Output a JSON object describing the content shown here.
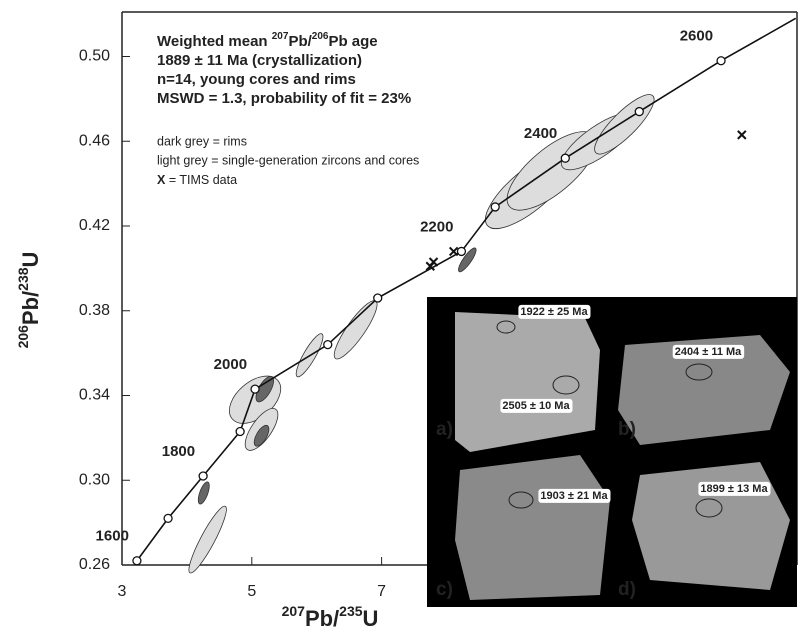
{
  "chart_data": {
    "type": "concordia",
    "annotation_lines": [
      [
        "Weighted mean ",
        "207",
        "Pb/",
        "206",
        "Pb age"
      ],
      [
        "1889 ± 11  Ma (crystallization)"
      ],
      [
        "n=14, young cores and rims"
      ],
      [
        "MSWD = 1.3, probability of fit = 23%"
      ]
    ],
    "legend_lines": [
      "dark grey = rims",
      "light grey = single-generation zircons and cores"
    ],
    "legend_tims": [
      "X",
      " = TIMS data"
    ],
    "x_label": [
      "207",
      "Pb/",
      "235",
      "U"
    ],
    "y_label": [
      "206",
      "Pb/",
      "238",
      "U"
    ],
    "xlim": [
      3,
      13.4
    ],
    "ylim": [
      0.26,
      0.521
    ],
    "xticks": [
      3,
      5,
      7
    ],
    "yticks": [
      0.26,
      0.3,
      0.34,
      0.38,
      0.42,
      0.46,
      {
        "value": 0.5,
        "label": "0.50"
      },
      {
        "value": 0.3,
        "label": "0.30"
      }
    ],
    "concordia": {
      "x": [
        3.23,
        3.71,
        4.25,
        4.82,
        5.05,
        6.17,
        6.94,
        8.23,
        8.75,
        9.83,
        10.97,
        12.23,
        13.38
      ],
      "y": [
        0.262,
        0.282,
        0.302,
        0.323,
        0.343,
        0.364,
        0.386,
        0.408,
        0.429,
        0.452,
        0.474,
        0.498,
        0.518
      ],
      "labels": [
        "1600",
        null,
        "1800",
        null,
        "2000",
        null,
        null,
        "2200",
        null,
        "2400",
        null,
        "2600",
        null
      ]
    },
    "ellipses": [
      {
        "x": 4.32,
        "y": 0.272,
        "rx": 0.58,
        "ry": 0.0033,
        "angle": -62,
        "shade": "light"
      },
      {
        "x": 4.26,
        "y": 0.294,
        "rx": 0.18,
        "ry": 0.0019,
        "angle": -70,
        "shade": "dark"
      },
      {
        "x": 5.05,
        "y": 0.338,
        "rx": 0.46,
        "ry": 0.0085,
        "angle": -40,
        "shade": "light"
      },
      {
        "x": 5.15,
        "y": 0.324,
        "rx": 0.38,
        "ry": 0.0047,
        "angle": -55,
        "shade": "light"
      },
      {
        "x": 5.2,
        "y": 0.343,
        "rx": 0.22,
        "ry": 0.0028,
        "angle": -60,
        "shade": "dark"
      },
      {
        "x": 5.15,
        "y": 0.321,
        "rx": 0.18,
        "ry": 0.0024,
        "angle": -60,
        "shade": "dark"
      },
      {
        "x": 5.89,
        "y": 0.359,
        "rx": 0.38,
        "ry": 0.0028,
        "angle": -60,
        "shade": "light"
      },
      {
        "x": 6.6,
        "y": 0.371,
        "rx": 0.54,
        "ry": 0.0042,
        "angle": -55,
        "shade": "light"
      },
      {
        "x": 8.32,
        "y": 0.404,
        "rx": 0.22,
        "ry": 0.0019,
        "angle": -55,
        "shade": "dark"
      },
      {
        "x": 9.28,
        "y": 0.437,
        "rx": 0.85,
        "ry": 0.0094,
        "angle": -40,
        "shade": "light"
      },
      {
        "x": 9.62,
        "y": 0.446,
        "rx": 0.85,
        "ry": 0.0104,
        "angle": -40,
        "shade": "light"
      },
      {
        "x": 10.35,
        "y": 0.46,
        "rx": 0.69,
        "ry": 0.0071,
        "angle": -35,
        "shade": "light"
      },
      {
        "x": 10.74,
        "y": 0.468,
        "rx": 0.62,
        "ry": 0.0057,
        "angle": -45,
        "shade": "light"
      }
    ],
    "tims": {
      "x": [
        7.75,
        7.8,
        8.11,
        12.55
      ],
      "y": [
        0.401,
        0.403,
        0.408,
        0.463
      ]
    },
    "inset": {
      "panels": [
        "a)",
        "b)",
        "c)",
        "d)"
      ],
      "ages": [
        "1922 ± 25 Ma",
        "2505 ± 10 Ma",
        "2404 ± 11 Ma",
        "1903 ± 21 Ma",
        "1899 ± 13 Ma"
      ]
    }
  }
}
